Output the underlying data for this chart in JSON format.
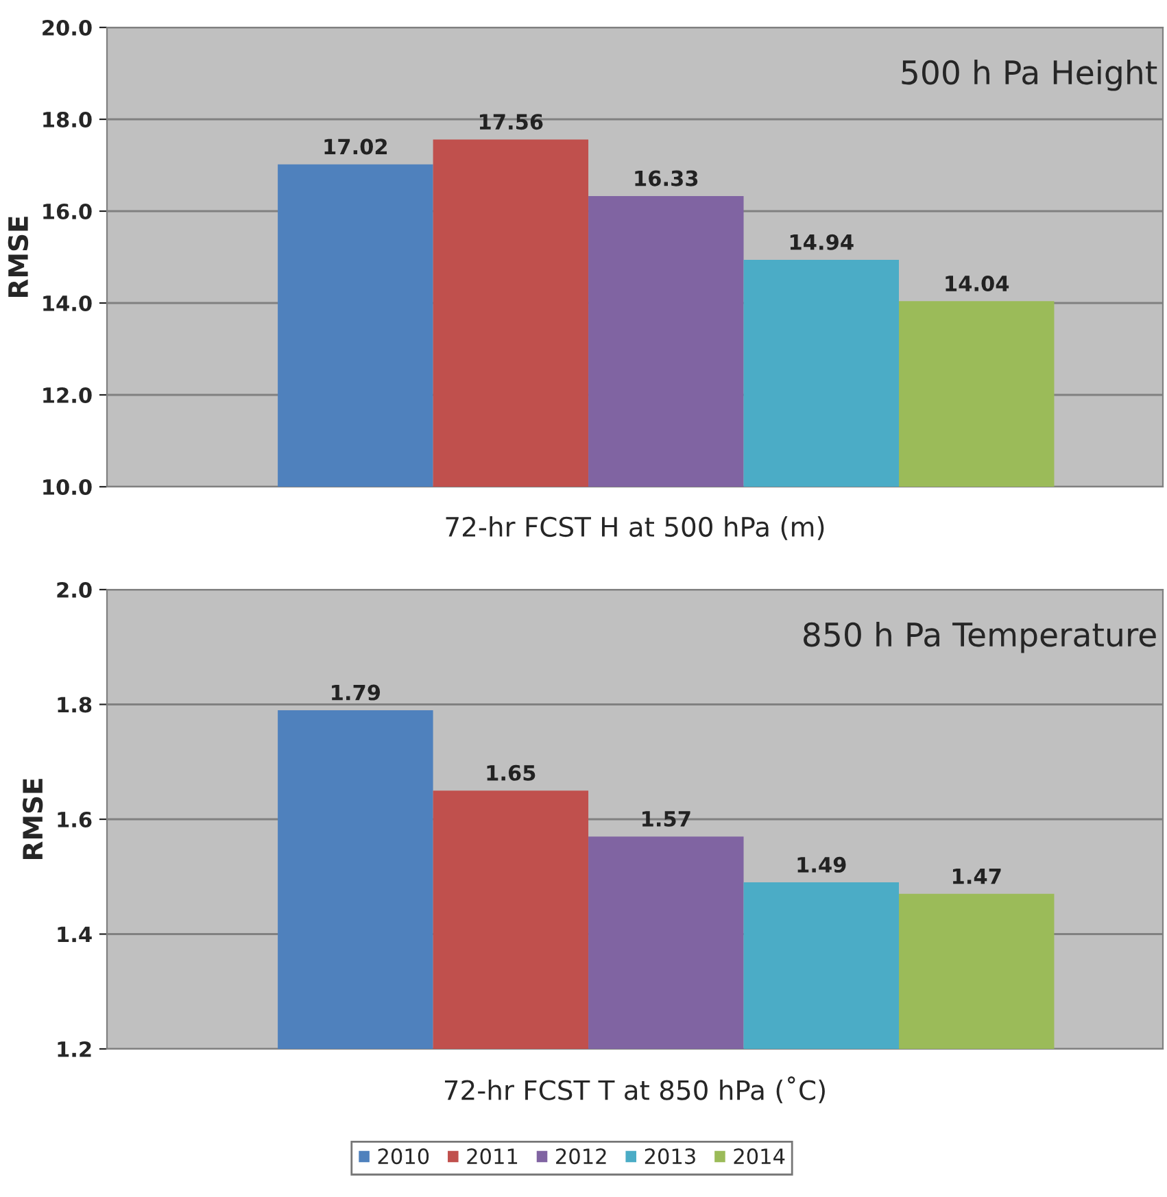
{
  "chart_data": [
    {
      "type": "bar",
      "xlabel": "72-hr FCST H at 500 hPa (m)",
      "ylabel": "RMSE",
      "annotations": [
        "500 h Pa Height"
      ],
      "categories": [
        null
      ],
      "series": [
        {
          "name": "2010",
          "color": "#4f81bd",
          "values": [
            17.02
          ]
        },
        {
          "name": "2011",
          "color": "#c0504d",
          "values": [
            17.56
          ]
        },
        {
          "name": "2012",
          "color": "#8064a2",
          "values": [
            16.33
          ]
        },
        {
          "name": "2013",
          "color": "#4bacc6",
          "values": [
            14.94
          ]
        },
        {
          "name": "2014",
          "color": "#9bbb59",
          "values": [
            14.04
          ]
        }
      ],
      "ylim": [
        10,
        20
      ],
      "yticks": [
        {
          "value": 10,
          "label": "10.0"
        },
        {
          "value": 12,
          "label": "12.0"
        },
        {
          "value": 14,
          "label": "14.0"
        },
        {
          "value": 16,
          "label": "16.0"
        },
        {
          "value": 18,
          "label": "18.0"
        },
        {
          "value": 20,
          "label": "20.0"
        }
      ],
      "grid": "y",
      "data_labels": true,
      "legend": "bottom"
    },
    {
      "type": "bar",
      "xlabel": "72-hr FCST T at 850 hPa (˚C)",
      "ylabel": "RMSE",
      "annotations": [
        "850 h Pa Temperature"
      ],
      "categories": [
        null
      ],
      "series": [
        {
          "name": "2010",
          "color": "#4f81bd",
          "values": [
            1.79
          ]
        },
        {
          "name": "2011",
          "color": "#c0504d",
          "values": [
            1.65
          ]
        },
        {
          "name": "2012",
          "color": "#8064a2",
          "values": [
            1.57
          ]
        },
        {
          "name": "2013",
          "color": "#4bacc6",
          "values": [
            1.49
          ]
        },
        {
          "name": "2014",
          "color": "#9bbb59",
          "values": [
            1.47
          ]
        }
      ],
      "ylim": [
        1.2,
        2.0
      ],
      "yticks": [
        {
          "value": 1.2,
          "label": "1.2"
        },
        {
          "value": 1.4,
          "label": "1.4"
        },
        {
          "value": 1.6,
          "label": "1.6"
        },
        {
          "value": 1.8,
          "label": "1.8"
        },
        {
          "value": 2.0,
          "label": "2.0"
        }
      ],
      "grid": "y",
      "data_labels": true
    }
  ]
}
